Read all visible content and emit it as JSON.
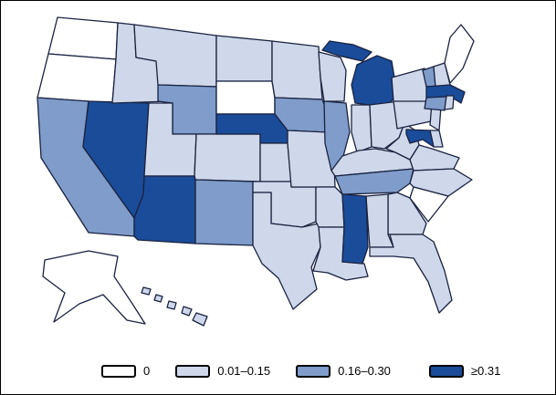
{
  "figure": {
    "background": "#ffffff",
    "border_color": "#000000"
  },
  "map": {
    "region": "United States",
    "stroke_color": "#1a2240"
  },
  "legend": {
    "items": [
      {
        "label": "0",
        "color": "#ffffff"
      },
      {
        "label": "0.01–0.15",
        "color": "#ced8ea"
      },
      {
        "label": "0.16–0.30",
        "color": "#7f9cca"
      },
      {
        "label": "≥0.31",
        "color": "#1a4c99"
      }
    ]
  },
  "chart_data": {
    "type": "choropleth",
    "region": "United States, by state",
    "bins": [
      "0",
      "0.01–0.15",
      "0.16–0.30",
      "≥0.31"
    ],
    "legend_position": "bottom",
    "states": [
      {
        "abbr": "WA",
        "name": "Washington",
        "bin": "0"
      },
      {
        "abbr": "OR",
        "name": "Oregon",
        "bin": "0"
      },
      {
        "abbr": "CA",
        "name": "California",
        "bin": "0.16–0.30"
      },
      {
        "abbr": "NV",
        "name": "Nevada",
        "bin": "≥0.31"
      },
      {
        "abbr": "ID",
        "name": "Idaho",
        "bin": "0.01–0.15"
      },
      {
        "abbr": "MT",
        "name": "Montana",
        "bin": "0.01–0.15"
      },
      {
        "abbr": "WY",
        "name": "Wyoming",
        "bin": "0.16–0.30"
      },
      {
        "abbr": "UT",
        "name": "Utah",
        "bin": "0.01–0.15"
      },
      {
        "abbr": "CO",
        "name": "Colorado",
        "bin": "0.01–0.15"
      },
      {
        "abbr": "AZ",
        "name": "Arizona",
        "bin": "≥0.31"
      },
      {
        "abbr": "NM",
        "name": "New Mexico",
        "bin": "0.16–0.30"
      },
      {
        "abbr": "ND",
        "name": "North Dakota",
        "bin": "0.01–0.15"
      },
      {
        "abbr": "SD",
        "name": "South Dakota",
        "bin": "0"
      },
      {
        "abbr": "NE",
        "name": "Nebraska",
        "bin": "≥0.31"
      },
      {
        "abbr": "KS",
        "name": "Kansas",
        "bin": "0.01–0.15"
      },
      {
        "abbr": "OK",
        "name": "Oklahoma",
        "bin": "0.01–0.15"
      },
      {
        "abbr": "TX",
        "name": "Texas",
        "bin": "0.01–0.15"
      },
      {
        "abbr": "MN",
        "name": "Minnesota",
        "bin": "0.01–0.15"
      },
      {
        "abbr": "IA",
        "name": "Iowa",
        "bin": "0.16–0.30"
      },
      {
        "abbr": "MO",
        "name": "Missouri",
        "bin": "0.01–0.15"
      },
      {
        "abbr": "AR",
        "name": "Arkansas",
        "bin": "0.01–0.15"
      },
      {
        "abbr": "LA",
        "name": "Louisiana",
        "bin": "0.01–0.15"
      },
      {
        "abbr": "WI",
        "name": "Wisconsin",
        "bin": "0.01–0.15"
      },
      {
        "abbr": "IL",
        "name": "Illinois",
        "bin": "0.16–0.30"
      },
      {
        "abbr": "IN",
        "name": "Indiana",
        "bin": "0.01–0.15"
      },
      {
        "abbr": "MI",
        "name": "Michigan",
        "bin": "≥0.31"
      },
      {
        "abbr": "OH",
        "name": "Ohio",
        "bin": "0.01–0.15"
      },
      {
        "abbr": "KY",
        "name": "Kentucky",
        "bin": "0.01–0.15"
      },
      {
        "abbr": "TN",
        "name": "Tennessee",
        "bin": "0.16–0.30"
      },
      {
        "abbr": "WV",
        "name": "West Virginia",
        "bin": "0.01–0.15"
      },
      {
        "abbr": "VA",
        "name": "Virginia",
        "bin": "0.01–0.15"
      },
      {
        "abbr": "NC",
        "name": "North Carolina",
        "bin": "0.01–0.15"
      },
      {
        "abbr": "SC",
        "name": "South Carolina",
        "bin": "0"
      },
      {
        "abbr": "GA",
        "name": "Georgia",
        "bin": "0.01–0.15"
      },
      {
        "abbr": "AL",
        "name": "Alabama",
        "bin": "0.01–0.15"
      },
      {
        "abbr": "MS",
        "name": "Mississippi",
        "bin": "≥0.31"
      },
      {
        "abbr": "FL",
        "name": "Florida",
        "bin": "0.01–0.15"
      },
      {
        "abbr": "PA",
        "name": "Pennsylvania",
        "bin": "0.01–0.15"
      },
      {
        "abbr": "NY",
        "name": "New York",
        "bin": "0.01–0.15"
      },
      {
        "abbr": "NJ",
        "name": "New Jersey",
        "bin": "0.01–0.15"
      },
      {
        "abbr": "DE",
        "name": "Delaware",
        "bin": "0.01–0.15"
      },
      {
        "abbr": "MD",
        "name": "Maryland",
        "bin": "≥0.31"
      },
      {
        "abbr": "VT",
        "name": "Vermont",
        "bin": "0.16–0.30"
      },
      {
        "abbr": "NH",
        "name": "New Hampshire",
        "bin": "0.01–0.15"
      },
      {
        "abbr": "MA",
        "name": "Massachusetts",
        "bin": "≥0.31"
      },
      {
        "abbr": "CT",
        "name": "Connecticut",
        "bin": "0.16–0.30"
      },
      {
        "abbr": "RI",
        "name": "Rhode Island",
        "bin": "0.01–0.15"
      },
      {
        "abbr": "ME",
        "name": "Maine",
        "bin": "0"
      },
      {
        "abbr": "AK",
        "name": "Alaska",
        "bin": "0"
      },
      {
        "abbr": "HI",
        "name": "Hawaii",
        "bin": "0.01–0.15"
      }
    ]
  }
}
